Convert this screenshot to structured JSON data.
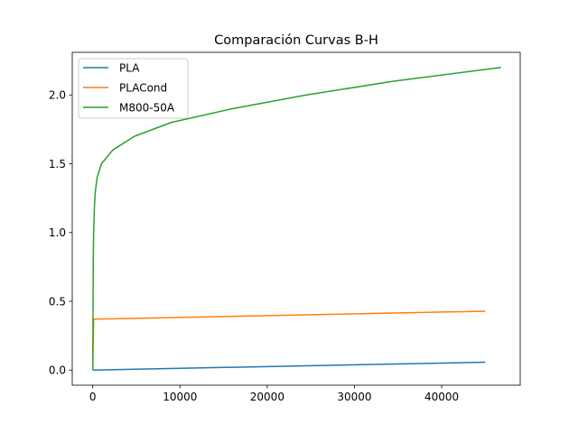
{
  "chart_data": {
    "type": "line",
    "title": "Comparación Curvas B-H",
    "xlabel": "",
    "ylabel": "",
    "xlim": [
      -2350,
      49000
    ],
    "ylim": [
      -0.11,
      2.31
    ],
    "x_ticks": [
      0,
      10000,
      20000,
      30000,
      40000
    ],
    "y_ticks": [
      0.0,
      0.5,
      1.0,
      1.5,
      2.0
    ],
    "x_tick_labels": [
      "0",
      "10000",
      "20000",
      "30000",
      "40000"
    ],
    "y_tick_labels": [
      "0.0",
      "0.5",
      "1.0",
      "1.5",
      "2.0"
    ],
    "grid": false,
    "legend_position": "top-left",
    "series": [
      {
        "name": "PLA",
        "color": "#1f77b4",
        "points": [
          [
            0,
            0.0
          ],
          [
            45000,
            0.057
          ]
        ]
      },
      {
        "name": "PLACond",
        "color": "#ff7f0e",
        "points": [
          [
            0,
            0.0
          ],
          [
            100,
            0.37
          ],
          [
            45000,
            0.428
          ]
        ]
      },
      {
        "name": "M800-50A",
        "color": "#2ca02c",
        "points": [
          [
            0,
            0.0
          ],
          [
            30,
            0.4
          ],
          [
            60,
            0.8
          ],
          [
            100,
            1.0
          ],
          [
            150,
            1.1
          ],
          [
            200,
            1.2
          ],
          [
            300,
            1.3
          ],
          [
            500,
            1.4
          ],
          [
            1000,
            1.5
          ],
          [
            2300,
            1.6
          ],
          [
            4800,
            1.7
          ],
          [
            9000,
            1.8
          ],
          [
            16000,
            1.9
          ],
          [
            24500,
            2.0
          ],
          [
            34500,
            2.1
          ],
          [
            46800,
            2.2
          ]
        ]
      }
    ]
  }
}
